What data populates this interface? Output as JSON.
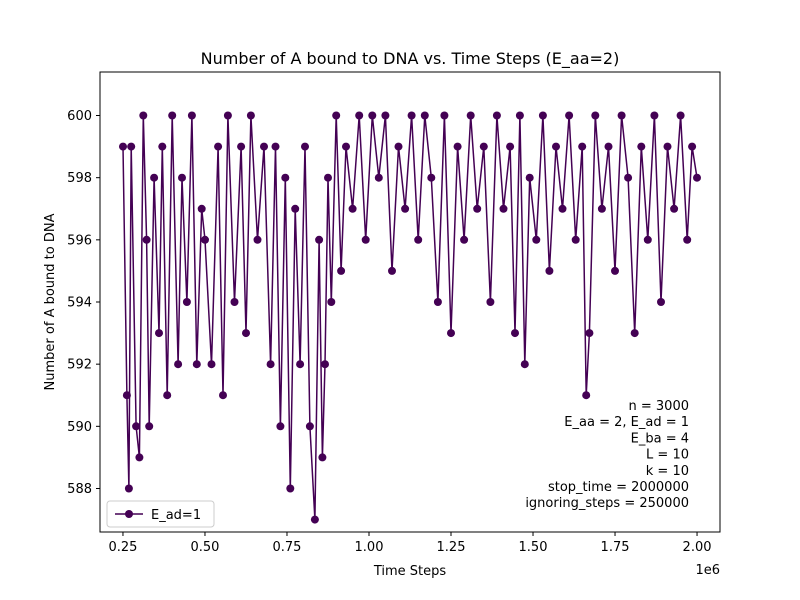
{
  "chart_data": {
    "type": "line",
    "title": "Number of A bound to DNA vs. Time Steps (E_aa=2)",
    "xlabel": "Time Steps",
    "ylabel": "Number of A bound to DNA",
    "x_offset_label": "1e6",
    "xlim": [
      180000,
      2070000
    ],
    "ylim": [
      586.6,
      601.4
    ],
    "x_ticks": [
      250000,
      500000,
      750000,
      1000000,
      1250000,
      1500000,
      1750000,
      2000000
    ],
    "x_tick_labels": [
      "0.25",
      "0.50",
      "0.75",
      "1.00",
      "1.25",
      "1.50",
      "1.75",
      "2.00"
    ],
    "y_ticks": [
      588,
      590,
      592,
      594,
      596,
      598,
      600
    ],
    "y_tick_labels": [
      "588",
      "590",
      "592",
      "594",
      "596",
      "598",
      "600"
    ],
    "grid": false,
    "legend_position": "lower-left",
    "series": [
      {
        "name": "E_ad=1",
        "color": "#440154",
        "marker": "circle",
        "x": [
          250000,
          262000,
          268000,
          275000,
          290000,
          300000,
          312000,
          322000,
          330000,
          345000,
          360000,
          370000,
          385000,
          400000,
          418000,
          430000,
          445000,
          460000,
          475000,
          490000,
          500000,
          520000,
          540000,
          555000,
          570000,
          590000,
          610000,
          625000,
          640000,
          660000,
          680000,
          700000,
          715000,
          730000,
          745000,
          760000,
          775000,
          790000,
          805000,
          820000,
          835000,
          848000,
          858000,
          866000,
          875000,
          885000,
          900000,
          915000,
          930000,
          950000,
          970000,
          990000,
          1010000,
          1030000,
          1050000,
          1070000,
          1090000,
          1110000,
          1130000,
          1150000,
          1170000,
          1190000,
          1210000,
          1230000,
          1250000,
          1270000,
          1290000,
          1310000,
          1330000,
          1350000,
          1370000,
          1390000,
          1410000,
          1430000,
          1445000,
          1460000,
          1475000,
          1490000,
          1510000,
          1530000,
          1550000,
          1570000,
          1590000,
          1610000,
          1630000,
          1650000,
          1662000,
          1672000,
          1690000,
          1710000,
          1730000,
          1750000,
          1770000,
          1790000,
          1810000,
          1830000,
          1850000,
          1870000,
          1890000,
          1910000,
          1930000,
          1950000,
          1970000,
          1985000,
          2000000
        ],
        "y": [
          599,
          591,
          588,
          599,
          590,
          589,
          600,
          596,
          590,
          598,
          593,
          599,
          591,
          600,
          592,
          598,
          594,
          600,
          592,
          597,
          596,
          592,
          599,
          591,
          600,
          594,
          599,
          593,
          600,
          596,
          599,
          592,
          599,
          590,
          598,
          588,
          597,
          592,
          599,
          590,
          587,
          596,
          589,
          592,
          598,
          594,
          600,
          595,
          599,
          597,
          600,
          596,
          600,
          598,
          600,
          595,
          599,
          597,
          600,
          596,
          600,
          598,
          594,
          600,
          593,
          599,
          596,
          600,
          597,
          599,
          594,
          600,
          597,
          599,
          593,
          600,
          592,
          598,
          596,
          600,
          595,
          599,
          597,
          600,
          596,
          599,
          591,
          593,
          600,
          597,
          599,
          595,
          600,
          598,
          593,
          599,
          596,
          600,
          594,
          599,
          597,
          600,
          596,
          599,
          598
        ]
      }
    ],
    "annotation_lines": [
      "n = 3000",
      "E_aa = 2, E_ad = 1",
      "E_ba = 4",
      "L = 10",
      "k = 10",
      "stop_time = 2000000",
      "ignoring_steps = 250000"
    ]
  }
}
